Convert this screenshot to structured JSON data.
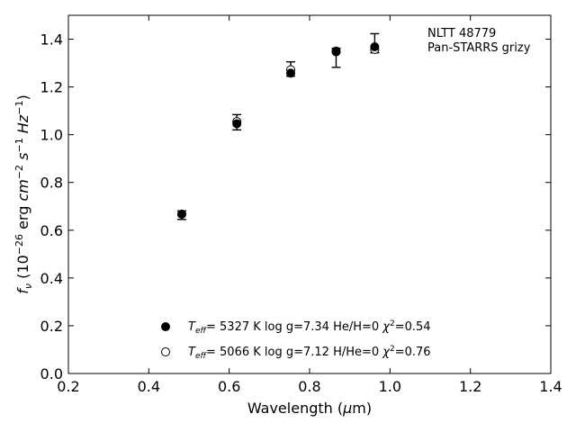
{
  "chart_data": {
    "type": "scatter",
    "annotation": [
      "NLTT 48779",
      "Pan-STARRS grizy"
    ],
    "xlabel": "Wavelength (μm)",
    "ylabel": "f_ν (10^−26 erg cm^−2 s^−1 Hz^−1)",
    "xlim": [
      0.2,
      1.4
    ],
    "ylim": [
      0.0,
      1.5
    ],
    "xticks": [
      "0.2",
      "0.4",
      "0.6",
      "0.8",
      "1.0",
      "1.2",
      "1.4"
    ],
    "yticks": [
      "0.0",
      "0.2",
      "0.4",
      "0.6",
      "0.8",
      "1.0",
      "1.2",
      "1.4"
    ],
    "grid": false,
    "legend_position": "bottom-center",
    "observed": {
      "x": [
        0.482,
        0.619,
        0.753,
        0.866,
        0.962
      ],
      "y": [
        0.663,
        1.052,
        1.275,
        1.322,
        1.383
      ],
      "err": [
        0.018,
        0.032,
        0.03,
        0.04,
        0.04
      ]
    },
    "series": [
      {
        "marker": "filled-circle",
        "legend": {
          "teff": "T_eff=  5327 K",
          "params": "log g=7.34  He/H=0",
          "chi": "χ²=0.54"
        },
        "x": [
          0.482,
          0.619,
          0.753,
          0.866,
          0.962
        ],
        "y": [
          0.667,
          1.046,
          1.258,
          1.347,
          1.368
        ]
      },
      {
        "marker": "open-circle",
        "legend": {
          "teff": "T_eff=  5066 K",
          "params": "log g=7.12  H/He=0",
          "chi": "χ²=0.76"
        },
        "x": [
          0.482,
          0.619,
          0.753,
          0.866,
          0.962
        ],
        "y": [
          0.667,
          1.055,
          1.272,
          1.35,
          1.357
        ]
      }
    ]
  }
}
